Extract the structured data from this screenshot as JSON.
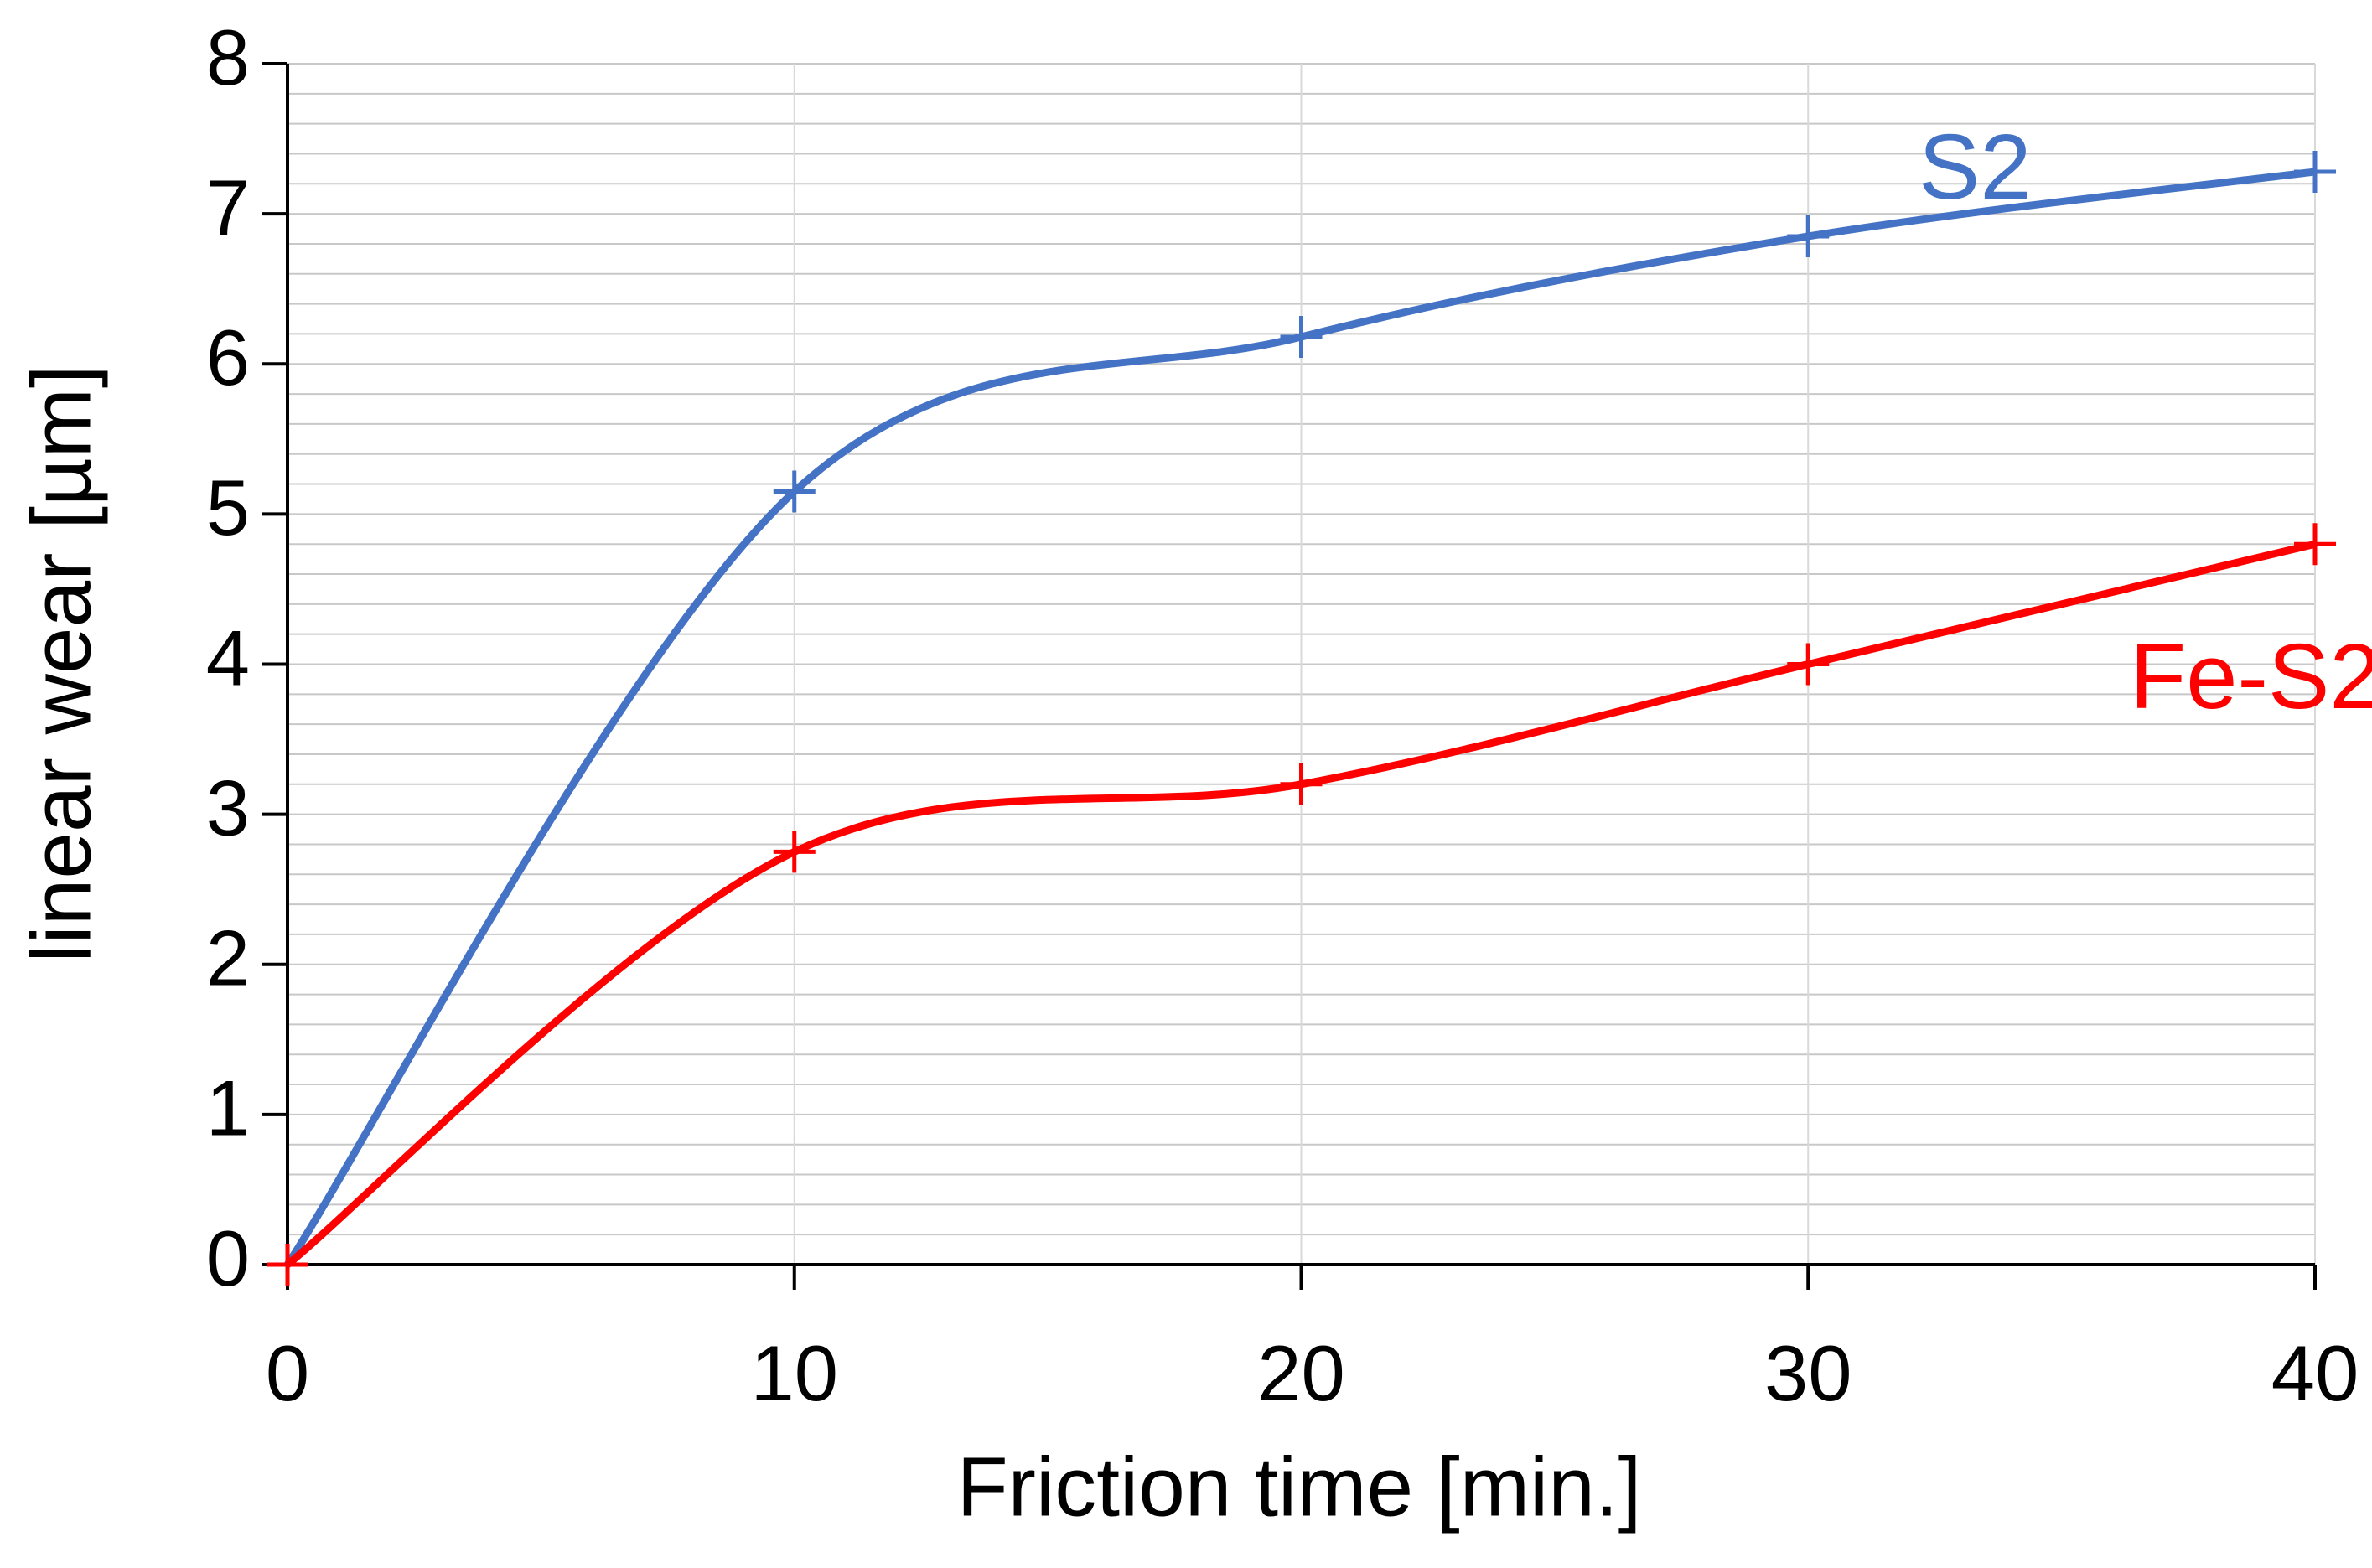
{
  "chart_data": {
    "type": "line",
    "x_label": "Friction time [min.]",
    "y_label": "linear wear [µm]",
    "x": [
      0,
      10,
      20,
      30,
      40
    ],
    "series": [
      {
        "name": "S2",
        "color": "#4472c4",
        "values": [
          0,
          5.15,
          6.18,
          6.85,
          7.28
        ]
      },
      {
        "name": "Fe-S2",
        "color": "#ff0000",
        "values": [
          0,
          2.75,
          3.2,
          4.0,
          4.8
        ]
      }
    ],
    "xlim": [
      0,
      40
    ],
    "xticks": [
      0,
      10,
      20,
      30,
      40
    ],
    "ylim": [
      0,
      8
    ],
    "yticks": [
      0,
      1,
      2,
      3,
      4,
      5,
      6,
      7,
      8
    ],
    "y_minor_ticks": [
      0.2,
      0.4,
      0.6,
      0.8,
      1.2,
      1.4,
      1.6,
      1.8,
      2.2,
      2.4,
      2.6,
      2.8,
      3.2,
      3.4,
      3.6,
      3.8,
      4.2,
      4.4,
      4.6,
      4.8,
      5.2,
      5.4,
      5.6,
      5.8,
      6.2,
      6.4,
      6.6,
      6.8,
      7.2,
      7.4,
      7.6,
      7.8
    ],
    "grid": true,
    "smooth": true
  }
}
